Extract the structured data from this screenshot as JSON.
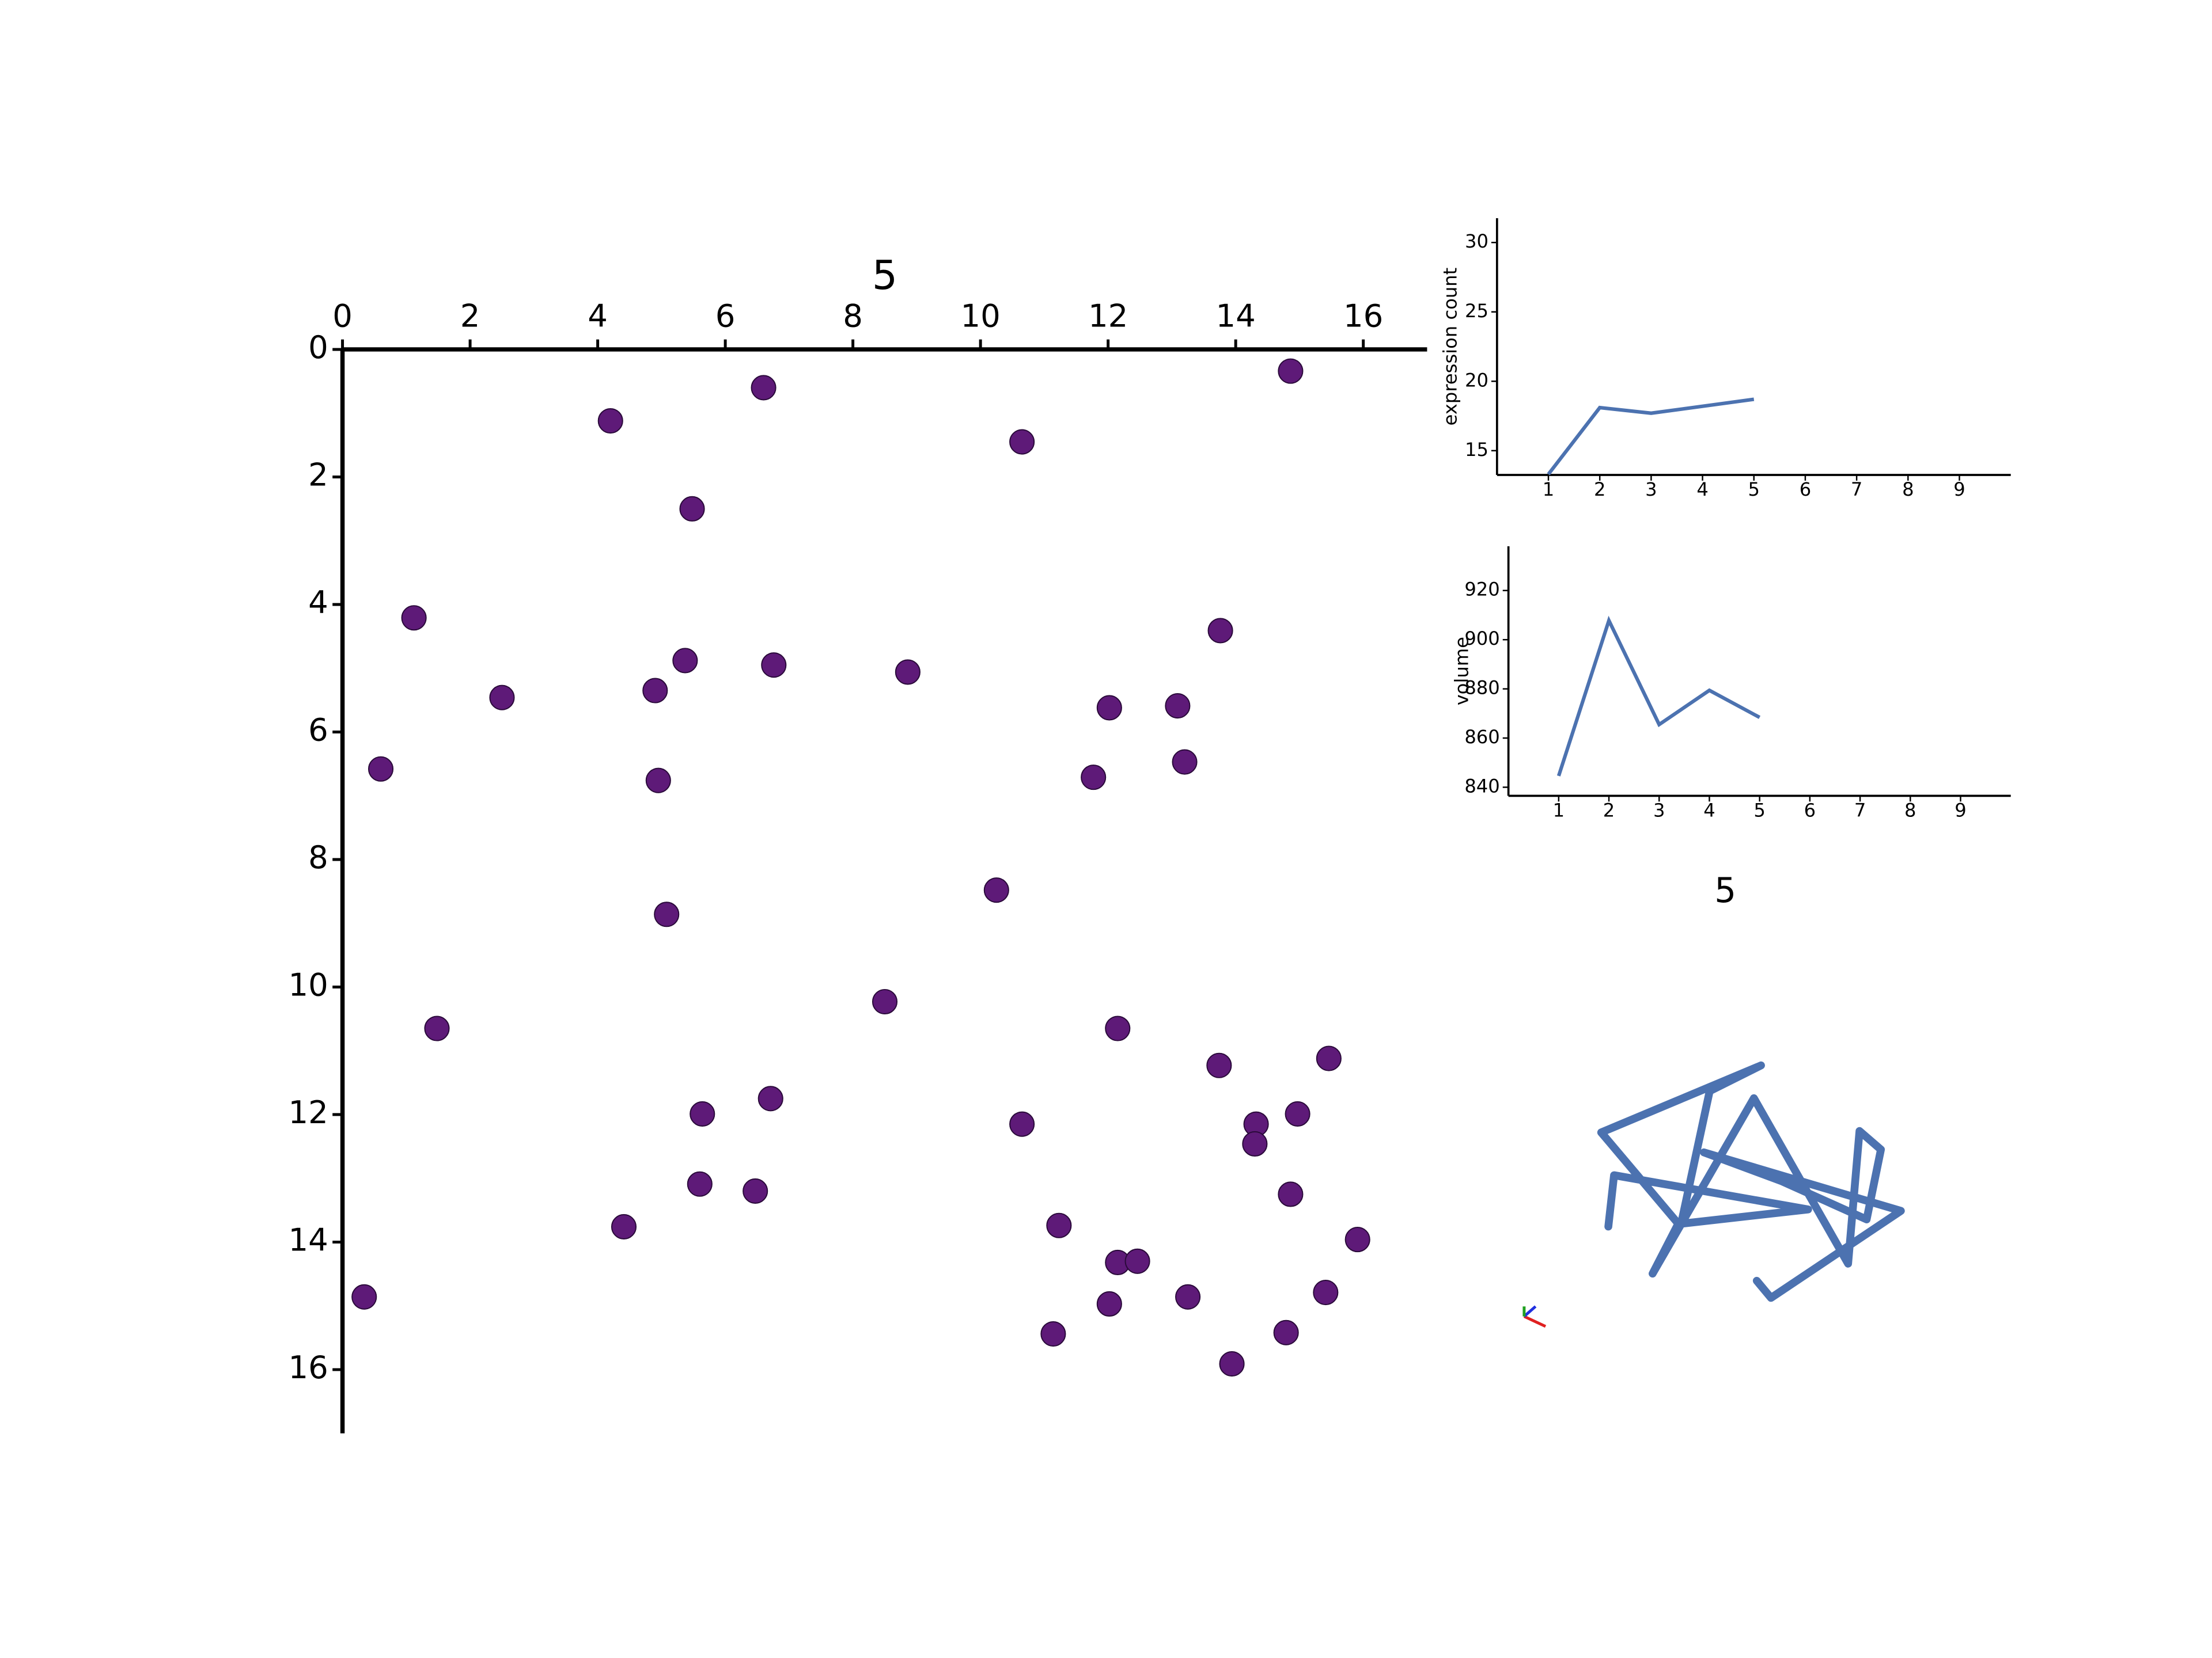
{
  "chart_data": [
    {
      "type": "scatter",
      "title": "5",
      "color": "#5e1a78",
      "x_axis_position": "top",
      "y_inverted": true,
      "xlim": [
        0,
        17
      ],
      "ylim": [
        0,
        17
      ],
      "xticks": [
        0,
        2,
        4,
        6,
        8,
        10,
        12,
        14,
        16
      ],
      "yticks": [
        0,
        2,
        4,
        6,
        8,
        10,
        12,
        14,
        16
      ],
      "x": [
        14.86,
        6.6,
        4.2,
        10.65,
        5.48,
        1.12,
        13.76,
        5.37,
        6.76,
        8.86,
        4.9,
        2.5,
        12.02,
        13.09,
        0.6,
        11.77,
        13.2,
        4.95,
        10.25,
        5.08,
        8.5,
        1.48,
        12.15,
        13.74,
        15.46,
        6.71,
        5.64,
        14.97,
        14.32,
        10.65,
        14.3,
        5.6,
        6.47,
        14.86,
        4.41,
        11.23,
        15.91,
        12.15,
        12.46,
        0.34,
        13.25,
        15.41,
        12.02,
        14.79,
        11.14,
        13.94
      ],
      "values": [
        0.34,
        0.6,
        1.12,
        1.45,
        2.5,
        4.21,
        4.41,
        4.88,
        4.95,
        5.06,
        5.35,
        5.46,
        5.62,
        5.59,
        6.58,
        6.71,
        6.47,
        6.76,
        8.48,
        8.86,
        10.23,
        10.65,
        10.65,
        11.23,
        11.12,
        11.75,
        11.99,
        11.99,
        12.15,
        12.15,
        12.46,
        13.09,
        13.2,
        13.25,
        13.76,
        13.74,
        13.96,
        14.32,
        14.3,
        14.86,
        14.86,
        14.79,
        14.97,
        15.42,
        15.44,
        15.91
      ]
    },
    {
      "type": "line",
      "ylabel": "expression count",
      "color": "#4c72b0",
      "x": [
        1,
        2,
        3,
        4,
        5
      ],
      "values": [
        13.3,
        18.1,
        17.7,
        18.2,
        18.7
      ],
      "xlim": [
        0,
        10
      ],
      "ylim": [
        13.25,
        31.75
      ],
      "xticks": [
        1,
        2,
        3,
        4,
        5,
        6,
        7,
        8,
        9
      ],
      "yticks": [
        15,
        20,
        25,
        30
      ]
    },
    {
      "type": "line",
      "ylabel": "volume",
      "color": "#4c72b0",
      "x": [
        1,
        2,
        3,
        4,
        5
      ],
      "values": [
        844.6,
        907.8,
        865.5,
        879.4,
        868.4
      ],
      "xlim": [
        0,
        10
      ],
      "ylim": [
        836.5,
        938
      ],
      "xticks": [
        1,
        2,
        3,
        4,
        5,
        6,
        7,
        8,
        9
      ],
      "yticks": [
        840,
        860,
        880,
        900,
        920
      ]
    },
    {
      "type": "line3d",
      "title": "5",
      "color": "#4c72b0",
      "x": [
        27,
        31,
        167,
        78,
        98,
        134,
        22,
        76,
        58,
        129,
        195,
        203,
        218,
        208,
        148,
        94,
        232,
        141,
        131
      ],
      "values": [
        70,
        106,
        82,
        72,
        165,
        183,
        136,
        72,
        37,
        160,
        44,
        137,
        124,
        75,
        102,
        122,
        81,
        20,
        32
      ],
      "xlim": [
        0,
        250
      ],
      "ylim": [
        0,
        200
      ]
    }
  ]
}
